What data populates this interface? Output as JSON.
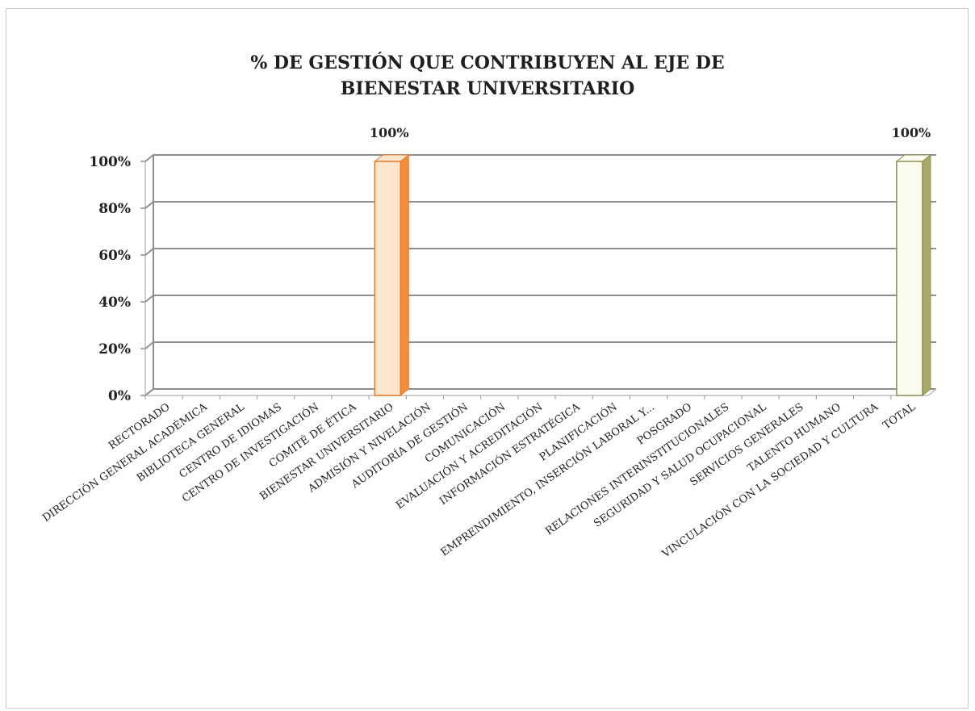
{
  "chart_data": {
    "type": "bar",
    "title_lines": [
      "% DE GESTIÓN QUE CONTRIBUYEN AL EJE DE",
      "BIENESTAR UNIVERSITARIO"
    ],
    "categories": [
      "RECTORADO",
      "DIRECCIÓN GENERAL ACADÉMICA",
      "BIBLIOTECA GENERAL",
      "CENTRO DE IDIOMAS",
      "CENTRO DE INVESTIGACIÓN",
      "COMITÉ DE ÉTICA",
      "BIENESTAR UNIVERSITARIO",
      "ADMISIÓN Y NIVELACIÓN",
      "AUDITORÍA DE GESTIÓN",
      "COMUNICACIÓN",
      "EVALUACIÓN Y ACREDITACIÓN",
      "INFORMACIÓN ESTRATÉGICA",
      "PLANIFICACIÓN",
      "EMPRENDIMIENTO, INSERCIÓN LABORAL Y...",
      "POSGRADO",
      "RELACIONES INTERINSTITUCIONALES",
      "SEGURIDAD Y SALUD OCUPACIONAL",
      "SERVICIOS GENERALES",
      "TALENTO HUMANO",
      "VINCULACIÓN CON LA SOCIEDAD Y CULTURA",
      "TOTAL"
    ],
    "values": [
      0,
      0,
      0,
      0,
      0,
      0,
      100,
      0,
      0,
      0,
      0,
      0,
      0,
      0,
      0,
      0,
      0,
      0,
      0,
      0,
      100
    ],
    "data_labels": [
      "",
      "",
      "",
      "",
      "",
      "",
      "100%",
      "",
      "",
      "",
      "",
      "",
      "",
      "",
      "",
      "",
      "",
      "",
      "",
      "",
      "100%"
    ],
    "y_ticks": [
      "0%",
      "20%",
      "40%",
      "60%",
      "80%",
      "100%"
    ],
    "ylim": [
      0,
      100
    ],
    "xlabel": "",
    "ylabel": "",
    "grid": true,
    "legend": "none",
    "style": "3d-column",
    "colors": {
      "bienestar_front": "#fde6cc",
      "bienestar_side": "#f08c3a",
      "bienestar_edge": "#e8792a",
      "total_front": "#fbfbef",
      "total_side": "#a9a96a",
      "total_edge": "#8f8f55",
      "grid": "#8e8e8e"
    }
  }
}
